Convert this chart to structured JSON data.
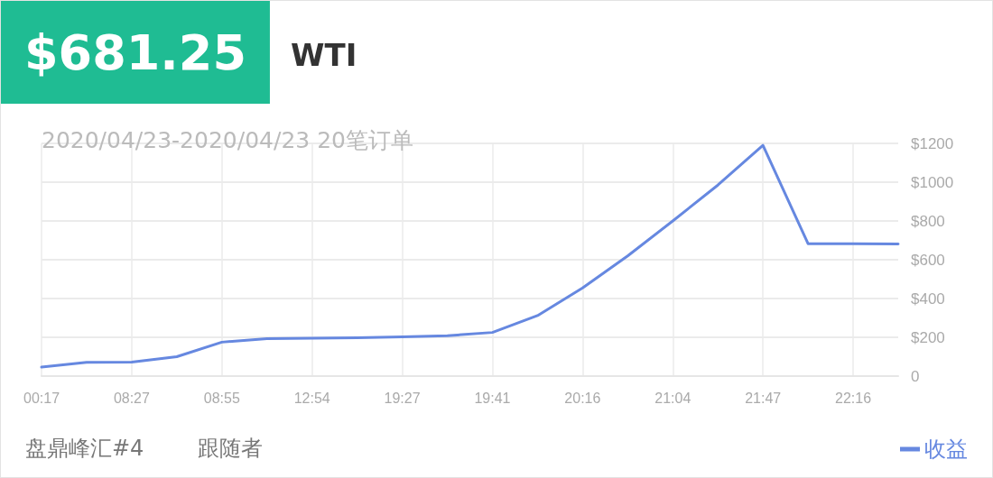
{
  "chart_data": {
    "type": "line",
    "title": "$681.25",
    "subtitle": "WTI",
    "annotations": [
      "2020/04/23-2020/04/23 20笔订单",
      "盘鼎峰汇#4",
      "跟随者"
    ],
    "categories": [
      "00:17",
      null,
      "08:27",
      null,
      "08:55",
      null,
      "12:54",
      null,
      "19:27",
      null,
      "19:41",
      null,
      "20:16",
      null,
      "21:04",
      null,
      "21:47",
      null,
      "22:16",
      null
    ],
    "series": [
      {
        "name": "收益",
        "color": "#6688e0",
        "values": [
          46,
          71,
          72,
          100,
          175,
          193,
          195,
          198,
          202,
          208,
          225,
          312,
          455,
          620,
          800,
          985,
          1190,
          683,
          683,
          681.25
        ]
      }
    ],
    "ylim": [
      0,
      1200
    ],
    "yticks": [
      0,
      {
        "value": 200,
        "label": "$200"
      },
      {
        "value": 400,
        "label": "$400"
      },
      {
        "value": 600,
        "label": "$600"
      },
      {
        "value": 800,
        "label": "$800"
      },
      {
        "value": 1000,
        "label": "$1000"
      },
      {
        "value": 1200,
        "label": "$1200"
      }
    ],
    "grid": true,
    "legend": "bottom right",
    "marker": "none",
    "line_style": "solid"
  }
}
